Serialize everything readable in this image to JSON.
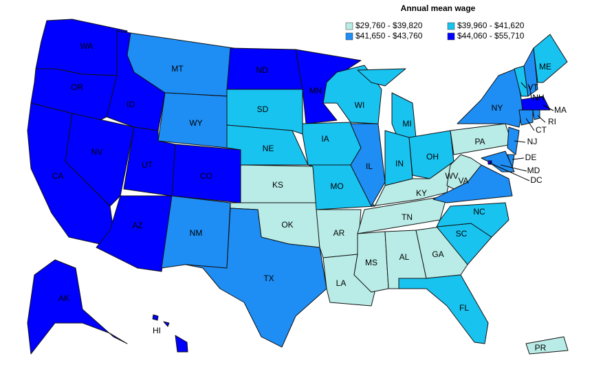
{
  "legend": {
    "title": "Annual mean wage",
    "items": [
      {
        "label": "$29,760 - $39,820",
        "color": "#b9ece6"
      },
      {
        "label": "$39,960 - $41,620",
        "color": "#19c3f0"
      },
      {
        "label": "$41,650 - $43,760",
        "color": "#1e8ef5"
      },
      {
        "label": "$44,060 - $55,710",
        "color": "#0000ff"
      }
    ]
  },
  "states": [
    {
      "label": "WA",
      "range": 3
    },
    {
      "label": "OR",
      "range": 3
    },
    {
      "label": "CA",
      "range": 3
    },
    {
      "label": "NV",
      "range": 3
    },
    {
      "label": "ID",
      "range": 3
    },
    {
      "label": "MT",
      "range": 2
    },
    {
      "label": "WY",
      "range": 2
    },
    {
      "label": "UT",
      "range": 3
    },
    {
      "label": "CO",
      "range": 3
    },
    {
      "label": "AZ",
      "range": 3
    },
    {
      "label": "NM",
      "range": 2
    },
    {
      "label": "ND",
      "range": 3
    },
    {
      "label": "SD",
      "range": 1
    },
    {
      "label": "NE",
      "range": 1
    },
    {
      "label": "KS",
      "range": 0
    },
    {
      "label": "OK",
      "range": 0
    },
    {
      "label": "TX",
      "range": 2
    },
    {
      "label": "MN",
      "range": 3
    },
    {
      "label": "IA",
      "range": 1
    },
    {
      "label": "MO",
      "range": 1
    },
    {
      "label": "AR",
      "range": 0
    },
    {
      "label": "LA",
      "range": 0
    },
    {
      "label": "WI",
      "range": 1
    },
    {
      "label": "IL",
      "range": 2
    },
    {
      "label": "MI",
      "range": 1
    },
    {
      "label": "IN",
      "range": 1
    },
    {
      "label": "OH",
      "range": 1
    },
    {
      "label": "KY",
      "range": 0
    },
    {
      "label": "TN",
      "range": 0
    },
    {
      "label": "MS",
      "range": 0
    },
    {
      "label": "AL",
      "range": 0
    },
    {
      "label": "GA",
      "range": 0
    },
    {
      "label": "FL",
      "range": 1
    },
    {
      "label": "SC",
      "range": 1
    },
    {
      "label": "NC",
      "range": 1
    },
    {
      "label": "VA",
      "range": 2
    },
    {
      "label": "WV",
      "range": 0
    },
    {
      "label": "PA",
      "range": 0
    },
    {
      "label": "NY",
      "range": 2
    },
    {
      "label": "NJ",
      "range": 2
    },
    {
      "label": "DE",
      "range": 2
    },
    {
      "label": "MD",
      "range": 2
    },
    {
      "label": "DC",
      "range": 3
    },
    {
      "label": "VT",
      "range": 1
    },
    {
      "label": "NH",
      "range": 2
    },
    {
      "label": "ME",
      "range": 1
    },
    {
      "label": "MA",
      "range": 3
    },
    {
      "label": "CT",
      "range": 2
    },
    {
      "label": "RI",
      "range": 2
    },
    {
      "label": "AK",
      "range": 3
    },
    {
      "label": "HI",
      "range": 3
    },
    {
      "label": "PR",
      "range": 0
    }
  ]
}
